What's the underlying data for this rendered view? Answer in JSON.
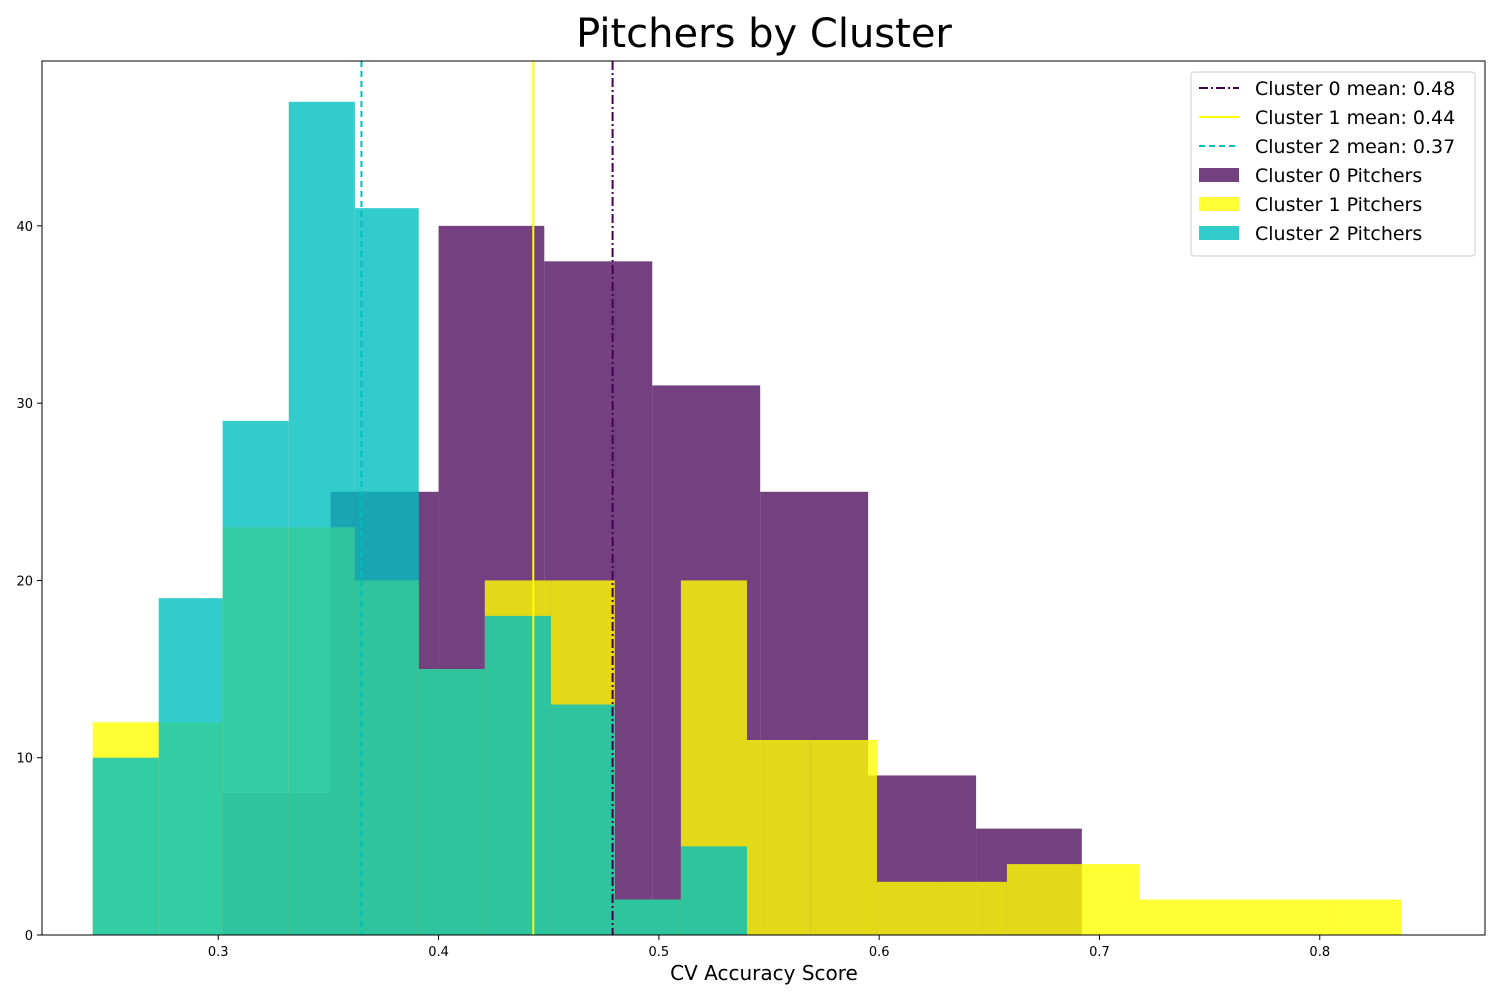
{
  "chart_data": {
    "type": "histogram",
    "title": "Pitchers by Cluster",
    "xlabel": "CV Accuracy Score",
    "ylabel": "",
    "xlim": [
      0.22,
      0.875
    ],
    "ylim": [
      0,
      49.3
    ],
    "xticks": [
      0.3,
      0.4,
      0.5,
      0.6,
      0.7,
      0.8
    ],
    "xtick_labels": [
      "0.3",
      "0.4",
      "0.5",
      "0.6",
      "0.7",
      "0.8"
    ],
    "yticks": [
      0,
      10,
      20,
      30,
      40
    ],
    "ytick_labels": [
      "0",
      "10",
      "20",
      "30",
      "40"
    ],
    "grid": false,
    "legend_position": "upper right",
    "series": [
      {
        "name": "Cluster 0 Pitchers",
        "color": "#440154",
        "alpha": 0.75,
        "bin_edges": [
          0.302,
          0.351,
          0.4,
          0.448,
          0.497,
          0.546,
          0.595,
          0.644,
          0.692
        ],
        "counts": [
          8,
          25,
          40,
          38,
          31,
          25,
          9,
          6
        ]
      },
      {
        "name": "Cluster 1 Pitchers",
        "color": "#ffff00",
        "alpha": 0.8,
        "bin_edges": [
          0.243,
          0.273,
          0.302,
          0.332,
          0.362,
          0.391,
          0.421,
          0.451,
          0.48,
          0.51,
          0.54,
          0.569,
          0.599,
          0.629,
          0.658,
          0.688,
          0.718,
          0.748,
          0.777,
          0.807,
          0.837
        ],
        "counts": [
          12,
          12,
          23,
          23,
          20,
          15,
          20,
          20,
          2,
          20,
          11,
          11,
          3,
          3,
          4,
          4,
          2,
          2,
          2,
          2
        ]
      },
      {
        "name": "Cluster 2 Pitchers",
        "color": "#00bfbf",
        "alpha": 0.8,
        "bin_edges": [
          0.243,
          0.273,
          0.302,
          0.332,
          0.362,
          0.391,
          0.421,
          0.451,
          0.48,
          0.51,
          0.54
        ],
        "counts": [
          10,
          19,
          29,
          47,
          41,
          15,
          18,
          13,
          2,
          5
        ]
      }
    ],
    "mean_lines": [
      {
        "label": "Cluster 0 mean: 0.48",
        "value": 0.479,
        "color": "#440154",
        "style": "dashdot"
      },
      {
        "label": "Cluster 1 mean: 0.44",
        "value": 0.443,
        "color": "#ffff00",
        "style": "solid"
      },
      {
        "label": "Cluster 2 mean: 0.37",
        "value": 0.365,
        "color": "#00bfbf",
        "style": "dashed"
      }
    ]
  }
}
